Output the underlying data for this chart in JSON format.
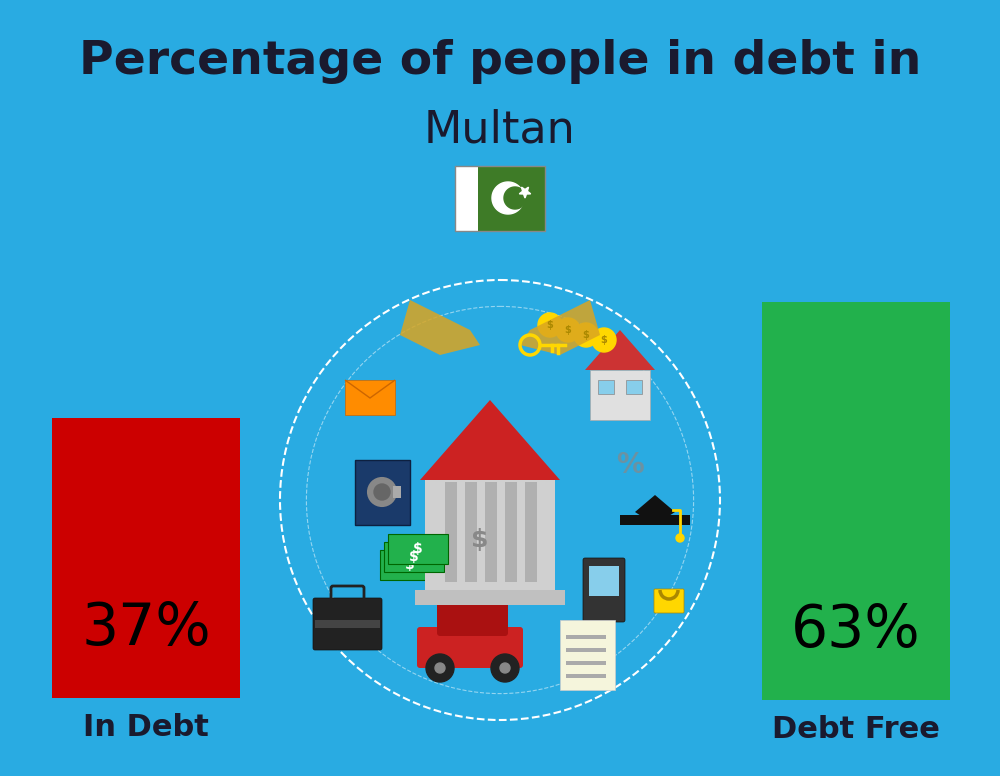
{
  "background_color": "#29ABE2",
  "title_line1": "Percentage of people in debt in",
  "title_line2": "Multan",
  "title1_fontsize": 34,
  "title2_fontsize": 32,
  "title_color": "#1a1a2e",
  "bar1_label": "37%",
  "bar1_color": "#CC0000",
  "bar1_xlabel": "In Debt",
  "bar2_label": "63%",
  "bar2_color": "#22B14C",
  "bar2_xlabel": "Debt Free",
  "label_fontsize": 42,
  "xlabel_fontsize": 22,
  "text_color": "#1a1a2e",
  "flag_green": "#3E7B27",
  "flag_white": "#ffffff"
}
